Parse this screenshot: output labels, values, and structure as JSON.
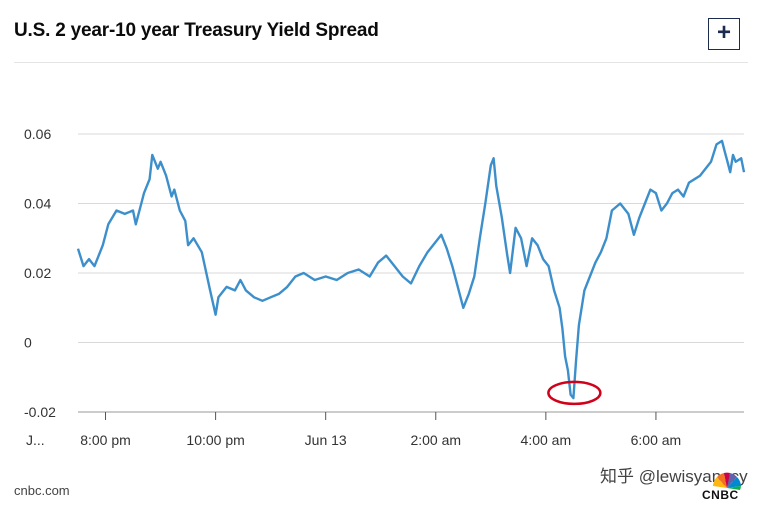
{
  "header": {
    "title": "U.S. 2 year-10 year Treasury Yield Spread",
    "expand_label": "+"
  },
  "footer": {
    "source": "cnbc.com",
    "watermark": "知乎 @lewisyangcy",
    "logo_text": "CNBC"
  },
  "colors": {
    "line": "#3d8fcb",
    "grid": "#d9d9d9",
    "annotation": "#d0021b"
  },
  "chart_data": {
    "type": "line",
    "title": "U.S. 2 year-10 year Treasury Yield Spread",
    "ylim": [
      -0.02,
      0.06
    ],
    "yticks": [
      {
        "value": 0.06,
        "label": "0.06"
      },
      {
        "value": 0.04,
        "label": "0.04"
      },
      {
        "value": 0.02,
        "label": "0.02"
      },
      {
        "value": 0.0,
        "label": "0"
      },
      {
        "value": -0.02,
        "label": "-0.02"
      }
    ],
    "x_range": [
      0,
      12.1
    ],
    "x_units": "hours after 7:30 pm",
    "xticks": [
      {
        "value": 0.5,
        "label": "8:00 pm"
      },
      {
        "value": 2.5,
        "label": "10:00 pm"
      },
      {
        "value": 4.5,
        "label": "Jun 13"
      },
      {
        "value": 6.5,
        "label": "2:00 am"
      },
      {
        "value": 8.5,
        "label": "4:00 am"
      },
      {
        "value": 10.5,
        "label": "6:00 am"
      }
    ],
    "x_cut_label": "J...",
    "grid": "horizontal",
    "series": [
      {
        "points": [
          [
            0.0,
            0.027
          ],
          [
            0.1,
            0.022
          ],
          [
            0.2,
            0.024
          ],
          [
            0.3,
            0.022
          ],
          [
            0.45,
            0.028
          ],
          [
            0.55,
            0.034
          ],
          [
            0.7,
            0.038
          ],
          [
            0.85,
            0.037
          ],
          [
            1.0,
            0.038
          ],
          [
            1.05,
            0.034
          ],
          [
            1.15,
            0.04
          ],
          [
            1.2,
            0.043
          ],
          [
            1.3,
            0.047
          ],
          [
            1.35,
            0.054
          ],
          [
            1.45,
            0.05
          ],
          [
            1.5,
            0.052
          ],
          [
            1.6,
            0.048
          ],
          [
            1.7,
            0.042
          ],
          [
            1.75,
            0.044
          ],
          [
            1.85,
            0.038
          ],
          [
            1.95,
            0.035
          ],
          [
            2.0,
            0.028
          ],
          [
            2.1,
            0.03
          ],
          [
            2.25,
            0.026
          ],
          [
            2.4,
            0.015
          ],
          [
            2.5,
            0.008
          ],
          [
            2.55,
            0.013
          ],
          [
            2.7,
            0.016
          ],
          [
            2.85,
            0.015
          ],
          [
            2.95,
            0.018
          ],
          [
            3.05,
            0.015
          ],
          [
            3.2,
            0.013
          ],
          [
            3.35,
            0.012
          ],
          [
            3.5,
            0.013
          ],
          [
            3.65,
            0.014
          ],
          [
            3.8,
            0.016
          ],
          [
            3.95,
            0.019
          ],
          [
            4.1,
            0.02
          ],
          [
            4.3,
            0.018
          ],
          [
            4.5,
            0.019
          ],
          [
            4.7,
            0.018
          ],
          [
            4.9,
            0.02
          ],
          [
            5.1,
            0.021
          ],
          [
            5.3,
            0.019
          ],
          [
            5.45,
            0.023
          ],
          [
            5.6,
            0.025
          ],
          [
            5.75,
            0.022
          ],
          [
            5.9,
            0.019
          ],
          [
            6.05,
            0.017
          ],
          [
            6.2,
            0.022
          ],
          [
            6.35,
            0.026
          ],
          [
            6.5,
            0.029
          ],
          [
            6.6,
            0.031
          ],
          [
            6.7,
            0.027
          ],
          [
            6.8,
            0.022
          ],
          [
            6.9,
            0.016
          ],
          [
            7.0,
            0.01
          ],
          [
            7.1,
            0.014
          ],
          [
            7.2,
            0.019
          ],
          [
            7.3,
            0.03
          ],
          [
            7.4,
            0.04
          ],
          [
            7.5,
            0.051
          ],
          [
            7.55,
            0.053
          ],
          [
            7.6,
            0.045
          ],
          [
            7.7,
            0.036
          ],
          [
            7.8,
            0.025
          ],
          [
            7.85,
            0.02
          ],
          [
            7.95,
            0.033
          ],
          [
            8.05,
            0.03
          ],
          [
            8.15,
            0.022
          ],
          [
            8.25,
            0.03
          ],
          [
            8.35,
            0.028
          ],
          [
            8.45,
            0.024
          ],
          [
            8.55,
            0.022
          ],
          [
            8.65,
            0.015
          ],
          [
            8.75,
            0.01
          ],
          [
            8.8,
            0.004
          ],
          [
            8.85,
            -0.004
          ],
          [
            8.9,
            -0.008
          ],
          [
            8.95,
            -0.015
          ],
          [
            9.0,
            -0.016
          ],
          [
            9.05,
            -0.005
          ],
          [
            9.1,
            0.005
          ],
          [
            9.2,
            0.015
          ],
          [
            9.3,
            0.019
          ],
          [
            9.4,
            0.023
          ],
          [
            9.5,
            0.026
          ],
          [
            9.6,
            0.03
          ],
          [
            9.7,
            0.038
          ],
          [
            9.85,
            0.04
          ],
          [
            10.0,
            0.037
          ],
          [
            10.1,
            0.031
          ],
          [
            10.2,
            0.036
          ],
          [
            10.3,
            0.04
          ],
          [
            10.4,
            0.044
          ],
          [
            10.5,
            0.043
          ],
          [
            10.6,
            0.038
          ],
          [
            10.7,
            0.04
          ],
          [
            10.8,
            0.043
          ],
          [
            10.9,
            0.044
          ],
          [
            11.0,
            0.042
          ],
          [
            11.1,
            0.046
          ],
          [
            11.2,
            0.047
          ],
          [
            11.3,
            0.048
          ],
          [
            11.4,
            0.05
          ],
          [
            11.5,
            0.052
          ],
          [
            11.6,
            0.057
          ],
          [
            11.7,
            0.058
          ],
          [
            11.75,
            0.055
          ],
          [
            11.8,
            0.052
          ],
          [
            11.85,
            0.049
          ],
          [
            11.9,
            0.054
          ],
          [
            11.95,
            0.052
          ],
          [
            12.05,
            0.053
          ],
          [
            12.1,
            0.049
          ]
        ]
      }
    ],
    "annotation": {
      "type": "ellipse",
      "x": 9.0,
      "y": -0.0145
    }
  }
}
